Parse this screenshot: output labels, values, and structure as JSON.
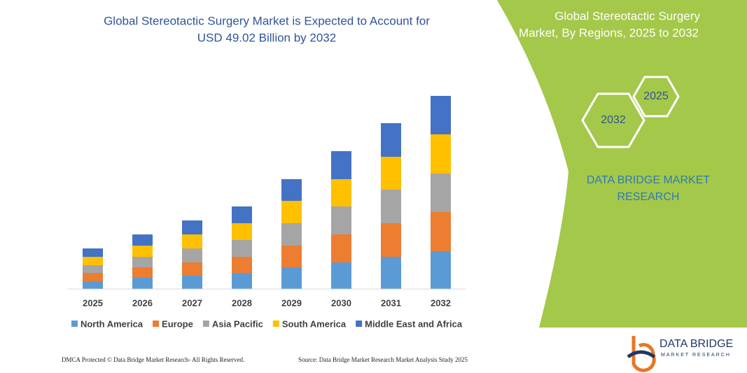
{
  "chart_data": {
    "type": "stacked-bar",
    "title_lines": [
      "Global Stereotactic Surgery Market is Expected to Account for",
      "USD 49.02 Billion by 2032"
    ],
    "categories": [
      "2025",
      "2026",
      "2027",
      "2028",
      "2029",
      "2030",
      "2031",
      "2032"
    ],
    "series": [
      {
        "name": "North America",
        "color": "#5b9bd5",
        "values": [
          11,
          16,
          19,
          23,
          31,
          38,
          46,
          54
        ]
      },
      {
        "name": "Europe",
        "color": "#ed7d31",
        "values": [
          12,
          15,
          19,
          23,
          31,
          40,
          48,
          56
        ]
      },
      {
        "name": "Asia Pacific",
        "color": "#a5a5a5",
        "values": [
          11,
          15,
          20,
          24,
          32,
          40,
          48,
          55
        ]
      },
      {
        "name": "South America",
        "color": "#ffc000",
        "values": [
          12,
          16,
          20,
          24,
          32,
          39,
          47,
          56
        ]
      },
      {
        "name": "Middle East and Africa",
        "color": "#4472c4",
        "values": [
          12,
          16,
          20,
          24,
          31,
          40,
          48,
          55
        ]
      }
    ],
    "ylim": [
      0,
      276
    ],
    "legend": "bottom"
  },
  "panel": {
    "title_lines": [
      "Global Stereotactic Surgery",
      "Market, By Regions, 2025 to 2032"
    ],
    "hex_left": "2032",
    "hex_right": "2025",
    "brand_lines": [
      "DATA BRIDGE MARKET",
      "RESEARCH"
    ]
  },
  "footer": {
    "left": "DMCA Protected © Data Bridge Market Research-  All Rights Reserved.",
    "right": "Source: Data Bridge Market Research  Market Analysis Study 2025",
    "logo_main": "DATA BRIDGE",
    "logo_sub": "MARKET RESEARCH"
  }
}
